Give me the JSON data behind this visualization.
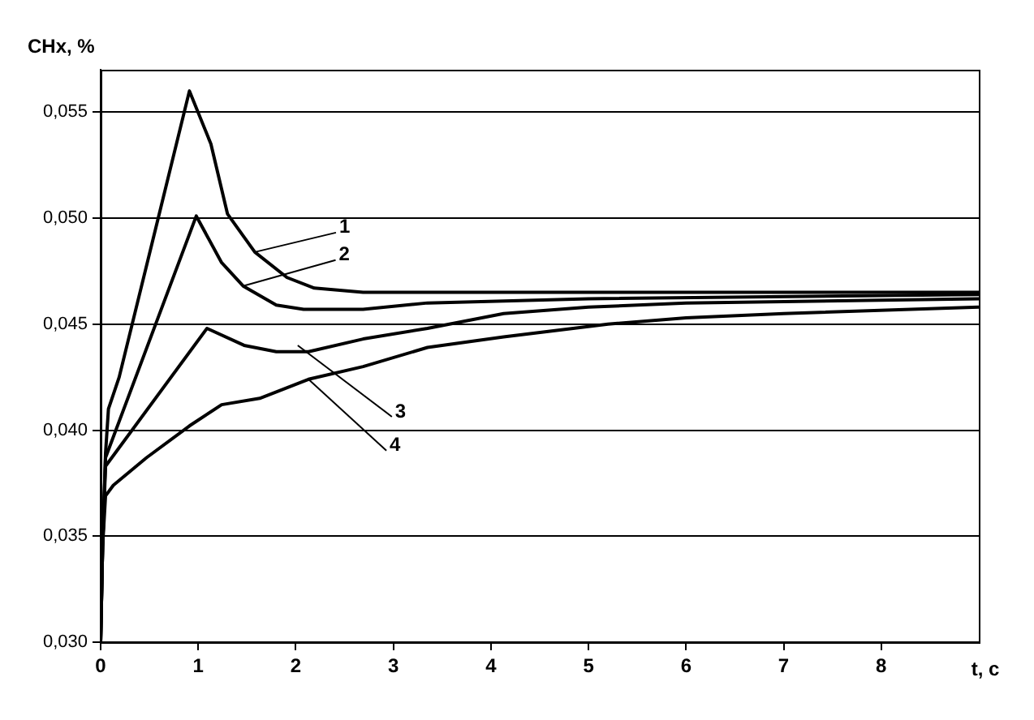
{
  "chart_data": {
    "type": "line",
    "ylabel": "CHx, %",
    "xlabel": "t, c",
    "xlim": [
      0,
      9
    ],
    "xticks": [
      0,
      1,
      2,
      3,
      4,
      5,
      6,
      7,
      8
    ],
    "ylim": [
      0.03,
      0.057
    ],
    "yticks": [
      {
        "value": 0.03,
        "label": "0,030"
      },
      {
        "value": 0.035,
        "label": "0,035"
      },
      {
        "value": 0.04,
        "label": "0,040"
      },
      {
        "value": 0.045,
        "label": "0,045"
      },
      {
        "value": 0.05,
        "label": "0,050"
      },
      {
        "value": 0.055,
        "label": "0,055"
      }
    ],
    "grid": "y",
    "legend": false,
    "marker": "none",
    "line_style": "solid",
    "series": [
      {
        "color": "#000000",
        "x": [
          0,
          0.02,
          0.05,
          0.08,
          0.19,
          0.91,
          1.13,
          1.3,
          1.58,
          1.91,
          2.19,
          2.69,
          9
        ],
        "values": [
          0.03,
          0.0345,
          0.0389,
          0.041,
          0.0425,
          0.056,
          0.0535,
          0.0502,
          0.0484,
          0.0472,
          0.0467,
          0.0465,
          0.0465
        ]
      },
      {
        "color": "#000000",
        "x": [
          0,
          0.02,
          0.05,
          0.98,
          1.24,
          1.46,
          1.8,
          2.08,
          2.69,
          3.35,
          5,
          9
        ],
        "values": [
          0.03,
          0.0345,
          0.0387,
          0.0501,
          0.0479,
          0.0468,
          0.0459,
          0.0457,
          0.0457,
          0.046,
          0.0462,
          0.0464
        ]
      },
      {
        "color": "#000000",
        "x": [
          0,
          0.02,
          0.05,
          1.09,
          1.47,
          1.8,
          2.13,
          2.69,
          3.35,
          4.13,
          5,
          6,
          9
        ],
        "values": [
          0.03,
          0.0345,
          0.0383,
          0.0448,
          0.044,
          0.0437,
          0.0437,
          0.0443,
          0.0448,
          0.0455,
          0.0458,
          0.046,
          0.0462
        ]
      },
      {
        "color": "#000000",
        "x": [
          0,
          0.02,
          0.05,
          0.13,
          0.47,
          0.91,
          1.24,
          1.63,
          2.13,
          2.69,
          3.35,
          4.13,
          5.2,
          6,
          7,
          9
        ],
        "values": [
          0.03,
          0.0345,
          0.0369,
          0.0374,
          0.0387,
          0.0402,
          0.0412,
          0.0415,
          0.0424,
          0.043,
          0.0439,
          0.0444,
          0.045,
          0.0453,
          0.0455,
          0.0458
        ]
      }
    ],
    "annotations": [
      {
        "text": "1",
        "x": 1.58,
        "y": 0.0484
      },
      {
        "text": "2",
        "x": 1.46,
        "y": 0.0468
      },
      {
        "text": "3",
        "x": 2.02,
        "y": 0.044
      },
      {
        "text": "4",
        "x": 2.13,
        "y": 0.0424
      }
    ]
  }
}
